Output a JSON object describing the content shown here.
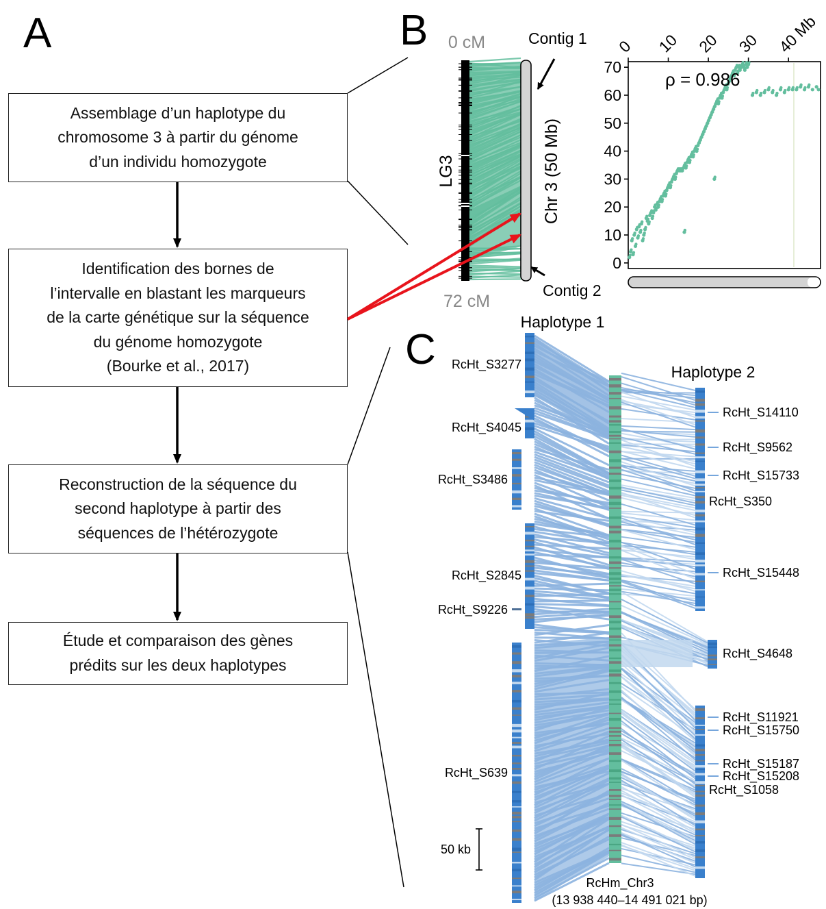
{
  "panels": {
    "a": "A",
    "b": "B",
    "c": "C"
  },
  "flowchart": {
    "steps": [
      {
        "lines": [
          "Assemblage d’un haplotype du",
          "chromosome 3 à partir du génome",
          "d’un individu homozygote"
        ]
      },
      {
        "lines": [
          "Identification des bornes de",
          "l’intervalle en blastant les marqueurs",
          "de la carte génétique sur la séquence",
          "du génome homozygote",
          "(Bourke et al., 2017)"
        ]
      },
      {
        "lines": [
          "Reconstruction de la séquence du",
          "second haplotype à partir des",
          "séquences de l’hétérozygote"
        ]
      },
      {
        "lines": [
          "Étude et comparaison des gènes",
          "prédits sur les deux haplotypes"
        ]
      }
    ]
  },
  "panel_b": {
    "top_cm": "0 cM",
    "bottom_cm": "72 cM",
    "linkage_group": "LG3",
    "chromosome": "Chr 3 (50 Mb)",
    "contig1": "Contig 1",
    "contig2": "Contig 2",
    "colors": {
      "synteny": "#63be9e",
      "arrow": "#e8141c",
      "bar": "#d4d4d4"
    }
  },
  "chart_data": {
    "type": "scatter",
    "x_ticks": [
      "0",
      "10",
      "20",
      "30",
      "40 Mb"
    ],
    "y_ticks": [
      "0",
      "10",
      "20",
      "30",
      "40",
      "50",
      "60",
      "70"
    ],
    "xlim": [
      0,
      48
    ],
    "ylim": [
      -2,
      72
    ],
    "annotation": "ρ = 0.986",
    "color": "#63be9e",
    "series": [
      {
        "points": [
          [
            0.3,
            2
          ],
          [
            0.6,
            4
          ],
          [
            0.9,
            8
          ],
          [
            1.2,
            3
          ],
          [
            1.5,
            10
          ],
          [
            1.8,
            6
          ],
          [
            2.1,
            12
          ],
          [
            2.4,
            9
          ],
          [
            2.7,
            13
          ],
          [
            3.0,
            11
          ],
          [
            3.3,
            14
          ],
          [
            3.6,
            8
          ],
          [
            3.9,
            10
          ],
          [
            4.2,
            12
          ],
          [
            4.5,
            16
          ],
          [
            4.8,
            15
          ],
          [
            5.1,
            14
          ],
          [
            5.4,
            17
          ],
          [
            5.7,
            18
          ],
          [
            6.0,
            16
          ],
          [
            6.3,
            18
          ],
          [
            6.6,
            20
          ],
          [
            6.9,
            19
          ],
          [
            7.2,
            21
          ],
          [
            7.5,
            20
          ],
          [
            7.8,
            22
          ],
          [
            8.1,
            23
          ],
          [
            8.4,
            22
          ],
          [
            8.7,
            24
          ],
          [
            9.0,
            25
          ],
          [
            9.3,
            24
          ],
          [
            9.6,
            26
          ],
          [
            9.9,
            27
          ],
          [
            10.2,
            28
          ],
          [
            10.5,
            27
          ],
          [
            10.8,
            29
          ],
          [
            11.1,
            30
          ],
          [
            11.4,
            31
          ],
          [
            11.7,
            30
          ],
          [
            12.0,
            32
          ],
          [
            12.3,
            33
          ],
          [
            12.6,
            33
          ],
          [
            12.9,
            33
          ],
          [
            13.2,
            33
          ],
          [
            13.5,
            33
          ],
          [
            13.8,
            34
          ],
          [
            14.1,
            35
          ],
          [
            14.4,
            34
          ],
          [
            14.7,
            36
          ],
          [
            15.0,
            37
          ],
          [
            15.3,
            36
          ],
          [
            15.6,
            38
          ],
          [
            15.9,
            39
          ],
          [
            16.2,
            38
          ],
          [
            16.5,
            40
          ],
          [
            16.8,
            41
          ],
          [
            17.1,
            40
          ],
          [
            17.4,
            42
          ],
          [
            17.7,
            43
          ],
          [
            18.0,
            44
          ],
          [
            18.3,
            45
          ],
          [
            18.6,
            46
          ],
          [
            18.9,
            47
          ],
          [
            19.2,
            48
          ],
          [
            19.5,
            49
          ],
          [
            19.8,
            50
          ],
          [
            20.1,
            51
          ],
          [
            20.4,
            52
          ],
          [
            20.7,
            53
          ],
          [
            21.0,
            54
          ],
          [
            21.3,
            55
          ],
          [
            21.6,
            56
          ],
          [
            21.9,
            57
          ],
          [
            22.2,
            58
          ],
          [
            22.5,
            57
          ],
          [
            22.8,
            59
          ],
          [
            23.1,
            60
          ],
          [
            23.4,
            59
          ],
          [
            23.7,
            61
          ],
          [
            24.0,
            62
          ],
          [
            24.3,
            63
          ],
          [
            24.6,
            62
          ],
          [
            24.9,
            64
          ],
          [
            25.2,
            65
          ],
          [
            25.5,
            66
          ],
          [
            25.8,
            67
          ],
          [
            26.1,
            68
          ],
          [
            26.4,
            67
          ],
          [
            26.7,
            69
          ],
          [
            27.0,
            70
          ],
          [
            27.3,
            68
          ],
          [
            27.6,
            70
          ],
          [
            27.9,
            69
          ],
          [
            28.2,
            70
          ],
          [
            28.5,
            71
          ],
          [
            28.8,
            70
          ],
          [
            29.1,
            69
          ],
          [
            29.4,
            71
          ],
          [
            29.7,
            70
          ],
          [
            30.0,
            71
          ],
          [
            31.0,
            60
          ],
          [
            32.0,
            61
          ],
          [
            33.0,
            60
          ],
          [
            34.0,
            61
          ],
          [
            35.0,
            62
          ],
          [
            36.0,
            61
          ],
          [
            37.0,
            60
          ],
          [
            38.0,
            62
          ],
          [
            39.0,
            61
          ],
          [
            40.0,
            62
          ],
          [
            41.0,
            62
          ],
          [
            42.0,
            62
          ],
          [
            43.0,
            63
          ],
          [
            44.0,
            62
          ],
          [
            45.0,
            63
          ],
          [
            46.0,
            62
          ],
          [
            47.0,
            63
          ],
          [
            47.5,
            62
          ],
          [
            14.0,
            11
          ],
          [
            21.5,
            30
          ]
        ]
      }
    ]
  },
  "panel_c": {
    "haplotype1_title": "Haplotype 1",
    "haplotype2_title": "Haplotype 2",
    "hap1_contigs": [
      "RcHt_S3277",
      "RcHt_S4045",
      "RcHt_S3486",
      "RcHt_S2845",
      "RcHt_S9226",
      "RcHt_S639"
    ],
    "hap2_contigs": [
      "RcHt_S14110",
      "RcHt_S9562",
      "RcHt_S15733",
      "RcHt_S350",
      "RcHt_S15448",
      "RcHt_S4648",
      "RcHt_S11921",
      "RcHt_S15750",
      "RcHt_S15187",
      "RcHt_S15208",
      "RcHt_S1058"
    ],
    "reference_name": "RcHm_Chr3",
    "reference_range": "(13 938 440–14 491 021 bp)",
    "scale_label": "50 kb",
    "colors": {
      "block": "#3a80cc",
      "light": "#c4d9ee",
      "gray": "#7b7b7b",
      "ref": "#63be9e",
      "link": "#8cb3df",
      "link_light": "#c2d8ef"
    }
  }
}
